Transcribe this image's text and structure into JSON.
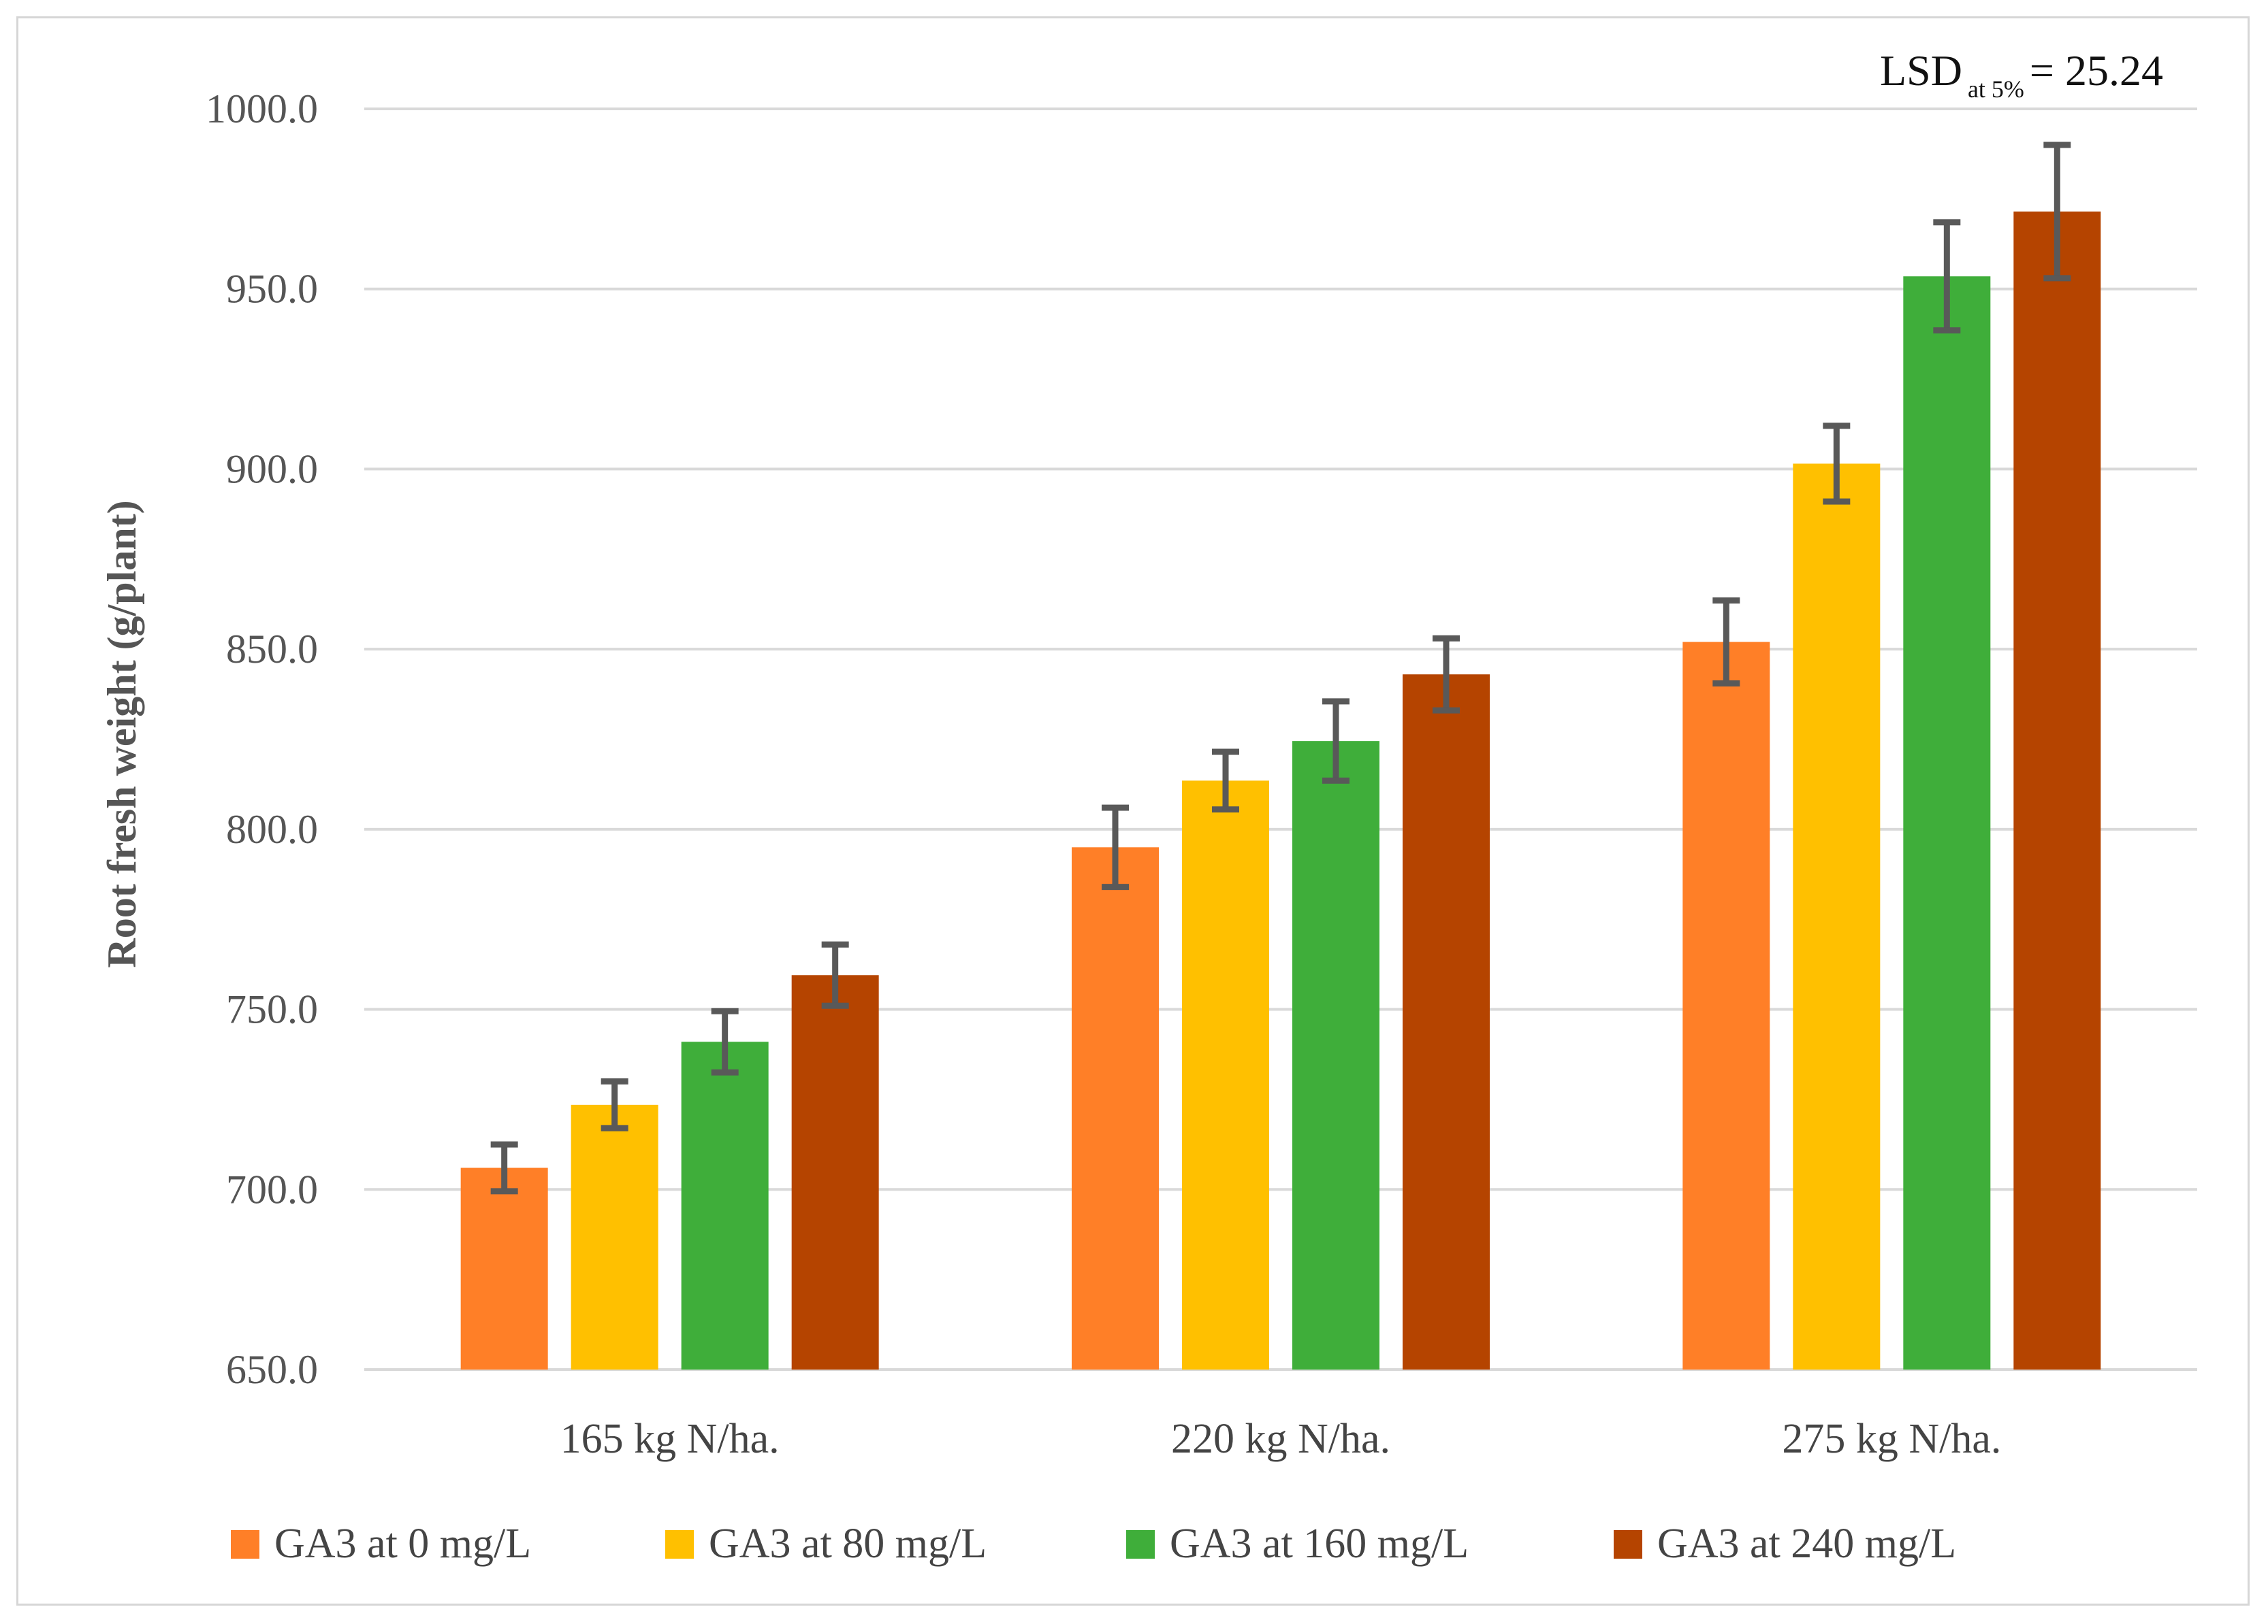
{
  "chart_data": {
    "type": "bar",
    "title": "",
    "xlabel": "",
    "ylabel": "Root fresh weight (g/plant)",
    "ylim": [
      650,
      1000
    ],
    "yticks": [
      "650.0",
      "700.0",
      "750.0",
      "800.0",
      "850.0",
      "900.0",
      "950.0",
      "1000.0"
    ],
    "ytick_values": [
      650,
      700,
      750,
      800,
      850,
      900,
      950,
      1000
    ],
    "categories": [
      "165 kg N/ha.",
      "220 kg N/ha.",
      "275 kg N/ha."
    ],
    "series": [
      {
        "name": "GA3 at 0 mg/L",
        "color": "#FF7F27",
        "values": [
          706,
          795,
          852
        ],
        "errors": [
          6.5,
          11,
          11.5
        ]
      },
      {
        "name": "GA3 at 80 mg/L",
        "color": "#FFC000",
        "values": [
          723.5,
          813.5,
          901.5
        ],
        "errors": [
          6.5,
          8,
          10.5
        ]
      },
      {
        "name": "GA3 at 160 mg/L",
        "color": "#3FAE3A",
        "values": [
          741,
          824.5,
          953.5
        ],
        "errors": [
          8.5,
          11,
          15
        ]
      },
      {
        "name": "GA3 at 240 mg/L",
        "color": "#B54400",
        "values": [
          759.5,
          843,
          971.5
        ],
        "errors": [
          8.5,
          10,
          18.5
        ]
      }
    ],
    "grid": true,
    "legend_position": "bottom",
    "annotation": {
      "main": "LSD",
      "sub": "at 5%",
      "value": "= 25.24"
    },
    "error_bar_color": "#595959",
    "grid_color": "#d9d9d9"
  }
}
